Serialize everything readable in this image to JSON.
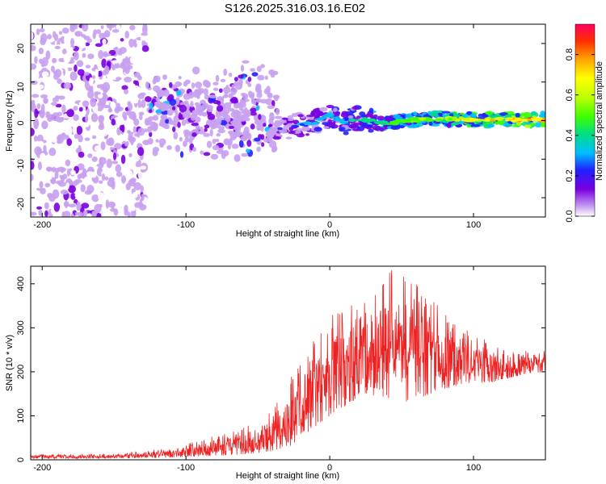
{
  "title": "S126.2025.316.03.16.E02",
  "colors": {
    "snr_line": "#ee2222",
    "background": "#ffffff",
    "axis": "#000000"
  },
  "chart_data": [
    {
      "type": "heatmap",
      "name": "spectrogram",
      "xlabel": "Height of straight line (km)",
      "ylabel": "Frequency (Hz)",
      "xlim": [
        -208,
        150
      ],
      "ylim": [
        -25,
        25
      ],
      "x_ticks": [
        -200,
        -100,
        0,
        100
      ],
      "x_tick_labels": [
        "-200",
        "-100",
        "0",
        "100"
      ],
      "y_ticks": [
        20,
        10,
        0,
        -10,
        -20
      ],
      "y_tick_labels": [
        "20",
        "10",
        "0",
        "-10",
        "-20"
      ],
      "description_of_values": "Normalized spectral amplitude vs frequency: diffuse noise below about -130 km, a broad cluster between -120 and -40 km, a narrow band near 0 Hz from -35 km onwards with amplitude rising to ~0.9 near 100-150 km",
      "colorbar": {
        "label": "Normalized spectral amplitude",
        "range": [
          0.0,
          0.95
        ],
        "ticks": [
          0.0,
          0.2,
          0.4,
          0.6,
          0.8
        ],
        "tick_labels": [
          "0.0",
          "0.2",
          "0.4",
          "0.6",
          "0.8"
        ],
        "colormap": [
          "#ffffff",
          "#c8a0f0",
          "#7a00e0",
          "#2020ff",
          "#00c0ff",
          "#00e080",
          "#40ff00",
          "#c0ff00",
          "#ffff00",
          "#ffa000",
          "#ff3000",
          "#ff0060"
        ]
      },
      "ridge": {
        "x": [
          -35,
          -25,
          -10,
          0,
          10,
          20,
          40,
          60,
          80,
          100,
          120,
          150
        ],
        "y": [
          -2,
          -1.5,
          -0.5,
          1.5,
          -0.5,
          0.5,
          -0.8,
          0.3,
          0.5,
          0.2,
          0.3,
          0.2
        ]
      }
    },
    {
      "type": "line",
      "name": "snr",
      "xlabel": "Height of straight line (km)",
      "ylabel": "SNR (10 * v/v)",
      "xlim": [
        -208,
        150
      ],
      "ylim": [
        0,
        440
      ],
      "x_ticks": [
        -200,
        -100,
        0,
        100
      ],
      "x_tick_labels": [
        "-200",
        "-100",
        "0",
        "100"
      ],
      "y_ticks": [
        0,
        100,
        200,
        300,
        400
      ],
      "y_tick_labels": [
        "0",
        "100",
        "200",
        "300",
        "400"
      ],
      "envelope": {
        "x": [
          -208,
          -150,
          -130,
          -110,
          -90,
          -70,
          -50,
          -40,
          -30,
          -20,
          -10,
          0,
          10,
          20,
          30,
          40,
          50,
          60,
          70,
          80,
          90,
          100,
          110,
          120,
          130,
          140,
          150
        ],
        "low": [
          3,
          3,
          4,
          5,
          8,
          10,
          15,
          20,
          25,
          50,
          75,
          100,
          120,
          140,
          145,
          140,
          130,
          135,
          150,
          160,
          170,
          170,
          175,
          180,
          190,
          195,
          200
        ],
        "high": [
          12,
          14,
          20,
          28,
          45,
          65,
          90,
          110,
          170,
          230,
          290,
          330,
          350,
          370,
          380,
          440,
          420,
          400,
          380,
          340,
          310,
          290,
          270,
          260,
          250,
          250,
          250
        ]
      }
    }
  ]
}
